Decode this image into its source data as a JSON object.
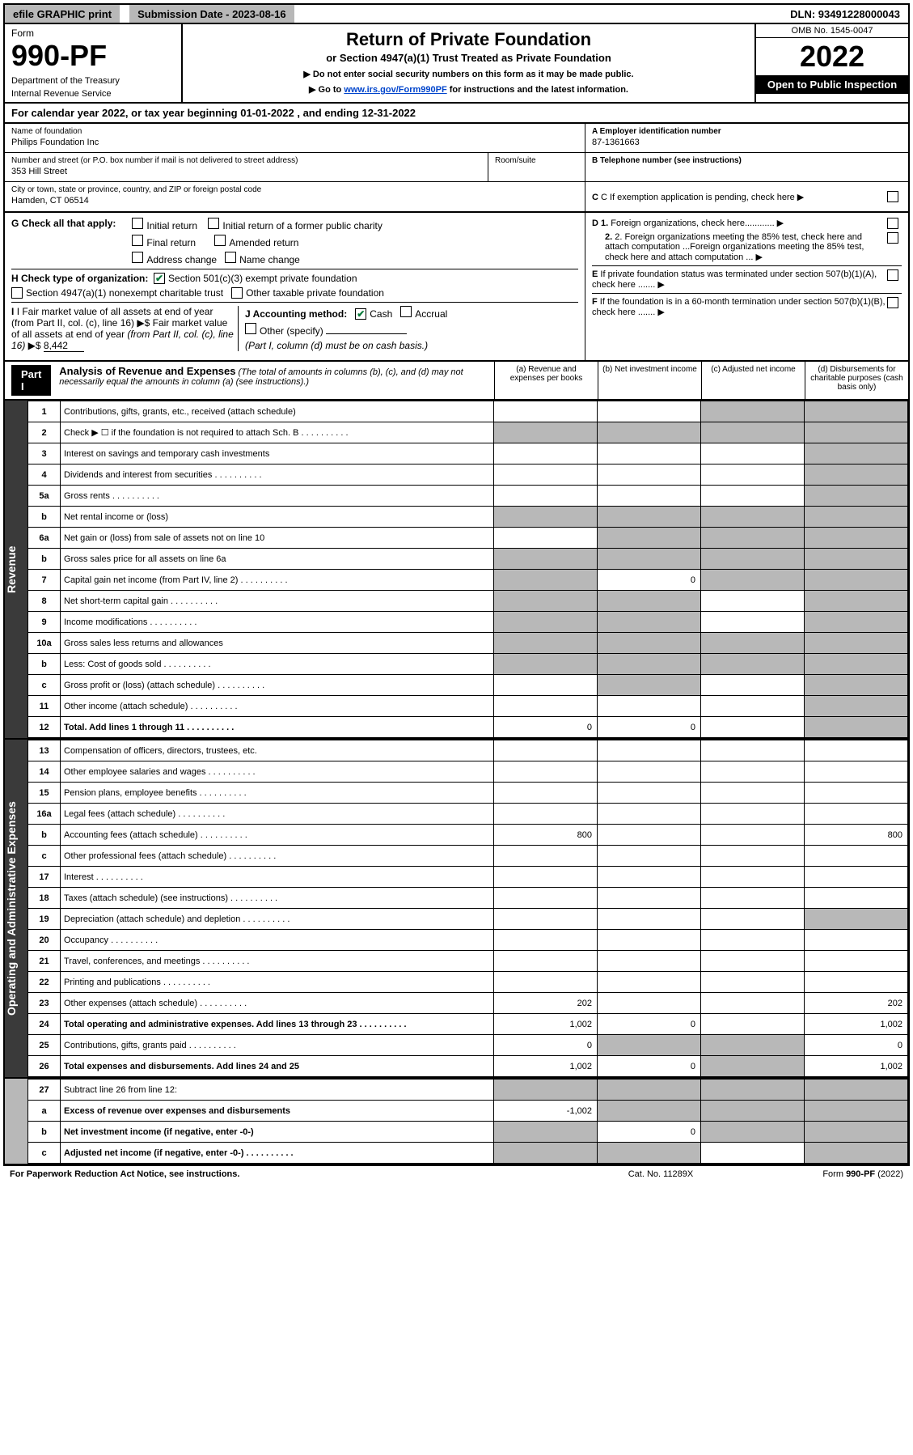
{
  "topbar": {
    "efile": "efile GRAPHIC print",
    "subdate_label": "Submission Date - 2023-08-16",
    "dln": "DLN: 93491228000043"
  },
  "header": {
    "form_word": "Form",
    "form_number": "990-PF",
    "dept": "Department of the Treasury",
    "irs": "Internal Revenue Service",
    "title": "Return of Private Foundation",
    "subtitle": "or Section 4947(a)(1) Trust Treated as Private Foundation",
    "note1": "▶ Do not enter social security numbers on this form as it may be made public.",
    "note2_pre": "▶ Go to ",
    "note2_link": "www.irs.gov/Form990PF",
    "note2_post": " for instructions and the latest information.",
    "omb": "OMB No. 1545-0047",
    "year": "2022",
    "open": "Open to Public Inspection"
  },
  "calyear": {
    "text_pre": "For calendar year 2022, or tax year beginning ",
    "begin": "01-01-2022",
    "text_mid": " , and ending ",
    "end": "12-31-2022"
  },
  "info": {
    "name_label": "Name of foundation",
    "name_value": "Philips Foundation Inc",
    "addr_label": "Number and street (or P.O. box number if mail is not delivered to street address)",
    "addr_value": "353 Hill Street",
    "suite_label": "Room/suite",
    "city_label": "City or town, state or province, country, and ZIP or foreign postal code",
    "city_value": "Hamden, CT  06514",
    "ein_label": "A Employer identification number",
    "ein_value": "87-1361663",
    "phone_label": "B Telephone number (see instructions)",
    "pending_label": "C If exemption application is pending, check here"
  },
  "checks": {
    "g_label": "G Check all that apply:",
    "g_initial": "Initial return",
    "g_initial_former": "Initial return of a former public charity",
    "g_final": "Final return",
    "g_amended": "Amended return",
    "g_address": "Address change",
    "g_name": "Name change",
    "h_label": "H Check type of organization:",
    "h_501c3": "Section 501(c)(3) exempt private foundation",
    "h_4947": "Section 4947(a)(1) nonexempt charitable trust",
    "h_other_tax": "Other taxable private foundation",
    "i_label": "I Fair market value of all assets at end of year (from Part II, col. (c), line 16) ▶$ ",
    "i_value": "8,442",
    "j_label": "J Accounting method:",
    "j_cash": "Cash",
    "j_accrual": "Accrual",
    "j_other": "Other (specify)",
    "j_note": "(Part I, column (d) must be on cash basis.)",
    "d1": "D 1. Foreign organizations, check here............",
    "d2": "2. Foreign organizations meeting the 85% test, check here and attach computation ...",
    "e": "E  If private foundation status was terminated under section 507(b)(1)(A), check here .......",
    "f": "F  If the foundation is in a 60-month termination under section 507(b)(1)(B), check here ......."
  },
  "part1": {
    "label": "Part I",
    "title": "Analysis of Revenue and Expenses",
    "sub": " (The total of amounts in columns (b), (c), and (d) may not necessarily equal the amounts in column (a) (see instructions).)",
    "col_a": "(a)  Revenue and expenses per books",
    "col_b": "(b)  Net investment income",
    "col_c": "(c)  Adjusted net income",
    "col_d": "(d)  Disbursements for charitable purposes (cash basis only)"
  },
  "side": {
    "revenue": "Revenue",
    "expenses": "Operating and Administrative Expenses"
  },
  "rows": [
    {
      "n": "1",
      "desc": "Contributions, gifts, grants, etc., received (attach schedule)",
      "a": "",
      "b": "",
      "c": "",
      "d": "",
      "grey_c": true,
      "grey_d": true
    },
    {
      "n": "2",
      "desc": "Check ▶ ☐ if the foundation is not required to attach Sch. B",
      "a": "",
      "b": "",
      "c": "",
      "d": "",
      "grey_a": true,
      "grey_b": true,
      "grey_c": true,
      "grey_d": true,
      "dots": true
    },
    {
      "n": "3",
      "desc": "Interest on savings and temporary cash investments",
      "a": "",
      "b": "",
      "c": "",
      "d": "",
      "grey_d": true
    },
    {
      "n": "4",
      "desc": "Dividends and interest from securities",
      "a": "",
      "b": "",
      "c": "",
      "d": "",
      "grey_d": true,
      "dots": true
    },
    {
      "n": "5a",
      "desc": "Gross rents",
      "a": "",
      "b": "",
      "c": "",
      "d": "",
      "grey_d": true,
      "dots": true
    },
    {
      "n": "b",
      "desc": "Net rental income or (loss)",
      "a": "",
      "b": "",
      "c": "",
      "d": "",
      "grey_a": true,
      "grey_b": true,
      "grey_c": true,
      "grey_d": true
    },
    {
      "n": "6a",
      "desc": "Net gain or (loss) from sale of assets not on line 10",
      "a": "",
      "b": "",
      "c": "",
      "d": "",
      "grey_b": true,
      "grey_c": true,
      "grey_d": true
    },
    {
      "n": "b",
      "desc": "Gross sales price for all assets on line 6a",
      "a": "",
      "b": "",
      "c": "",
      "d": "",
      "grey_a": true,
      "grey_b": true,
      "grey_c": true,
      "grey_d": true
    },
    {
      "n": "7",
      "desc": "Capital gain net income (from Part IV, line 2)",
      "a": "",
      "b": "0",
      "c": "",
      "d": "",
      "grey_a": true,
      "grey_c": true,
      "grey_d": true,
      "dots": true
    },
    {
      "n": "8",
      "desc": "Net short-term capital gain",
      "a": "",
      "b": "",
      "c": "",
      "d": "",
      "grey_a": true,
      "grey_b": true,
      "grey_d": true,
      "dots": true
    },
    {
      "n": "9",
      "desc": "Income modifications",
      "a": "",
      "b": "",
      "c": "",
      "d": "",
      "grey_a": true,
      "grey_b": true,
      "grey_d": true,
      "dots": true
    },
    {
      "n": "10a",
      "desc": "Gross sales less returns and allowances",
      "a": "",
      "b": "",
      "c": "",
      "d": "",
      "grey_a": true,
      "grey_b": true,
      "grey_c": true,
      "grey_d": true
    },
    {
      "n": "b",
      "desc": "Less: Cost of goods sold",
      "a": "",
      "b": "",
      "c": "",
      "d": "",
      "grey_a": true,
      "grey_b": true,
      "grey_c": true,
      "grey_d": true,
      "dots": true
    },
    {
      "n": "c",
      "desc": "Gross profit or (loss) (attach schedule)",
      "a": "",
      "b": "",
      "c": "",
      "d": "",
      "grey_b": true,
      "grey_d": true,
      "dots": true
    },
    {
      "n": "11",
      "desc": "Other income (attach schedule)",
      "a": "",
      "b": "",
      "c": "",
      "d": "",
      "grey_d": true,
      "dots": true
    },
    {
      "n": "12",
      "desc": "Total. Add lines 1 through 11",
      "a": "0",
      "b": "0",
      "c": "",
      "d": "",
      "bold": true,
      "grey_d": true,
      "dots": true
    }
  ],
  "rows2": [
    {
      "n": "13",
      "desc": "Compensation of officers, directors, trustees, etc.",
      "a": "",
      "b": "",
      "c": "",
      "d": ""
    },
    {
      "n": "14",
      "desc": "Other employee salaries and wages",
      "a": "",
      "b": "",
      "c": "",
      "d": "",
      "dots": true
    },
    {
      "n": "15",
      "desc": "Pension plans, employee benefits",
      "a": "",
      "b": "",
      "c": "",
      "d": "",
      "dots": true
    },
    {
      "n": "16a",
      "desc": "Legal fees (attach schedule)",
      "a": "",
      "b": "",
      "c": "",
      "d": "",
      "dots": true
    },
    {
      "n": "b",
      "desc": "Accounting fees (attach schedule)",
      "a": "800",
      "b": "",
      "c": "",
      "d": "800",
      "dots": true
    },
    {
      "n": "c",
      "desc": "Other professional fees (attach schedule)",
      "a": "",
      "b": "",
      "c": "",
      "d": "",
      "dots": true
    },
    {
      "n": "17",
      "desc": "Interest",
      "a": "",
      "b": "",
      "c": "",
      "d": "",
      "dots": true
    },
    {
      "n": "18",
      "desc": "Taxes (attach schedule) (see instructions)",
      "a": "",
      "b": "",
      "c": "",
      "d": "",
      "dots": true
    },
    {
      "n": "19",
      "desc": "Depreciation (attach schedule) and depletion",
      "a": "",
      "b": "",
      "c": "",
      "d": "",
      "grey_d": true,
      "dots": true
    },
    {
      "n": "20",
      "desc": "Occupancy",
      "a": "",
      "b": "",
      "c": "",
      "d": "",
      "dots": true
    },
    {
      "n": "21",
      "desc": "Travel, conferences, and meetings",
      "a": "",
      "b": "",
      "c": "",
      "d": "",
      "dots": true
    },
    {
      "n": "22",
      "desc": "Printing and publications",
      "a": "",
      "b": "",
      "c": "",
      "d": "",
      "dots": true
    },
    {
      "n": "23",
      "desc": "Other expenses (attach schedule)",
      "a": "202",
      "b": "",
      "c": "",
      "d": "202",
      "dots": true
    },
    {
      "n": "24",
      "desc": "Total operating and administrative expenses. Add lines 13 through 23",
      "a": "1,002",
      "b": "0",
      "c": "",
      "d": "1,002",
      "bold": true,
      "dots": true
    },
    {
      "n": "25",
      "desc": "Contributions, gifts, grants paid",
      "a": "0",
      "b": "",
      "c": "",
      "d": "0",
      "grey_b": true,
      "grey_c": true,
      "dots": true
    },
    {
      "n": "26",
      "desc": "Total expenses and disbursements. Add lines 24 and 25",
      "a": "1,002",
      "b": "0",
      "c": "",
      "d": "1,002",
      "bold": true,
      "grey_c": true
    }
  ],
  "rows3": [
    {
      "n": "27",
      "desc": "Subtract line 26 from line 12:",
      "a": "",
      "b": "",
      "c": "",
      "d": "",
      "grey_a": true,
      "grey_b": true,
      "grey_c": true,
      "grey_d": true
    },
    {
      "n": "a",
      "desc": "Excess of revenue over expenses and disbursements",
      "a": "-1,002",
      "b": "",
      "c": "",
      "d": "",
      "bold": true,
      "grey_b": true,
      "grey_c": true,
      "grey_d": true
    },
    {
      "n": "b",
      "desc": "Net investment income (if negative, enter -0-)",
      "a": "",
      "b": "0",
      "c": "",
      "d": "",
      "bold": true,
      "grey_a": true,
      "grey_c": true,
      "grey_d": true
    },
    {
      "n": "c",
      "desc": "Adjusted net income (if negative, enter -0-)",
      "a": "",
      "b": "",
      "c": "",
      "d": "",
      "bold": true,
      "grey_a": true,
      "grey_b": true,
      "grey_d": true,
      "dots": true
    }
  ],
  "footer": {
    "left": "For Paperwork Reduction Act Notice, see instructions.",
    "mid": "Cat. No. 11289X",
    "right": "Form 990-PF (2022)"
  }
}
